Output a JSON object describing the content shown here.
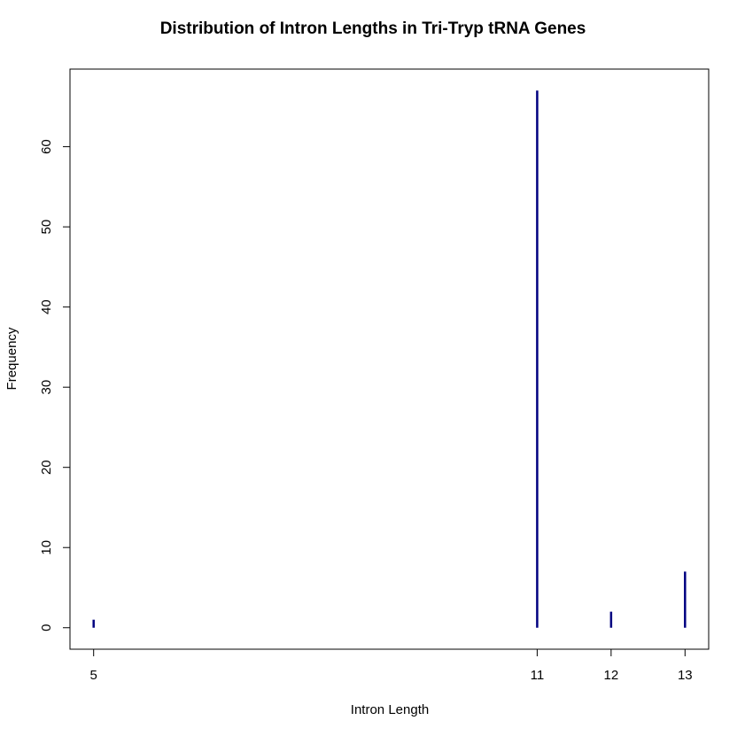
{
  "chart_data": {
    "type": "bar",
    "style": "histogram-spikes",
    "title": "Distribution of Intron Lengths in Tri-Tryp tRNA Genes",
    "xlabel": "Intron Length",
    "ylabel": "Frequency",
    "x": [
      5,
      11,
      12,
      13
    ],
    "values": [
      1,
      67,
      2,
      7
    ],
    "xlim": [
      4.68,
      13.32
    ],
    "ylim": [
      -2.68,
      69.68
    ],
    "x_ticks": [
      5,
      11,
      12,
      13
    ],
    "y_ticks": [
      0,
      10,
      20,
      30,
      40,
      50,
      60
    ],
    "grid": false,
    "legend": "none",
    "bar_color": "#000080",
    "frame_color": "#000000"
  }
}
